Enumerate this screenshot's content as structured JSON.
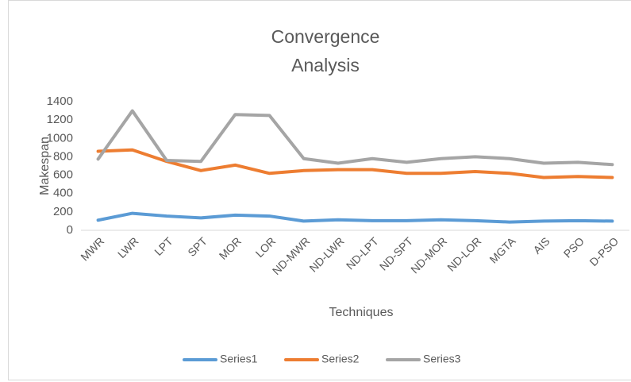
{
  "chart_data": {
    "type": "line",
    "title": "Convergence Analysis",
    "x_label": "Techniques",
    "y_label": "Makespan",
    "categories": [
      "MWR",
      "LWR",
      "LPT",
      "SPT",
      "MOR",
      "LOR",
      "ND-MWR",
      "ND-LWR",
      "ND-LPT",
      "ND-SPT",
      "ND-MOR",
      "ND-LOR",
      "MGTA",
      "AIS",
      "PSO",
      "D-PSO"
    ],
    "series": [
      {
        "name": "Series1",
        "color": "#5b9bd5",
        "values": [
          110,
          185,
          155,
          135,
          165,
          155,
          100,
          115,
          105,
          105,
          115,
          105,
          90,
          100,
          105,
          100
        ]
      },
      {
        "name": "Series2",
        "color": "#ed7d31",
        "values": [
          860,
          875,
          750,
          650,
          710,
          620,
          650,
          660,
          660,
          620,
          620,
          640,
          620,
          575,
          585,
          575
        ]
      },
      {
        "name": "Series3",
        "color": "#a5a5a5",
        "values": [
          775,
          1300,
          760,
          750,
          1260,
          1250,
          780,
          730,
          780,
          740,
          780,
          800,
          780,
          730,
          740,
          715
        ]
      }
    ],
    "ylim": [
      0,
      1400
    ],
    "yticks": [
      0,
      200,
      400,
      600,
      800,
      1000,
      1200,
      1400
    ],
    "grid": false,
    "legend": "bottom"
  }
}
